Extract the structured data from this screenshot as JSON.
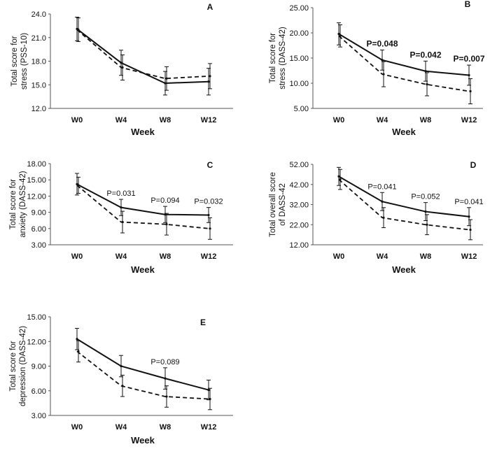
{
  "chart_data": [
    {
      "type": "line",
      "panel": "A",
      "ylabel": [
        "Total score for",
        "stress (PSS-10)"
      ],
      "xlabel": "Week",
      "categories": [
        "W0",
        "W4",
        "W8",
        "W12"
      ],
      "ylim": [
        12.0,
        24.0
      ],
      "yticks": [
        "12.0",
        "15.0",
        "18.0",
        "21.0",
        "24.0"
      ],
      "series": [
        {
          "style": "solid",
          "values": [
            22.1,
            17.8,
            15.2,
            15.4
          ],
          "error": [
            1.5,
            1.6,
            1.5,
            1.7
          ]
        },
        {
          "style": "dashed",
          "values": [
            22.0,
            17.2,
            15.8,
            16.1
          ],
          "error": [
            1.5,
            1.6,
            1.5,
            1.6
          ]
        }
      ],
      "annotations": []
    },
    {
      "type": "line",
      "panel": "B",
      "ylabel": [
        "Total score for",
        "stress (DASS-42)"
      ],
      "xlabel": "Week",
      "categories": [
        "W0",
        "W4",
        "W8",
        "W12"
      ],
      "ylim": [
        5.0,
        25.0
      ],
      "yticks": [
        "5.00",
        "10.00",
        "15.00",
        "20.00",
        "25.00"
      ],
      "series": [
        {
          "style": "solid",
          "values": [
            19.8,
            14.6,
            12.4,
            11.6
          ],
          "error": [
            2.2,
            2.0,
            2.0,
            2.0
          ]
        },
        {
          "style": "dashed",
          "values": [
            19.4,
            11.8,
            9.8,
            8.4
          ],
          "error": [
            2.2,
            2.5,
            2.3,
            2.5
          ]
        }
      ],
      "annotations": [
        {
          "category": "W4",
          "text": "P=0.048"
        },
        {
          "category": "W8",
          "text": "P=0.042"
        },
        {
          "category": "W12",
          "text": "P=0.007"
        }
      ]
    },
    {
      "type": "line",
      "panel": "C",
      "ylabel": [
        "Total score for",
        "anxiety (DASS-42)"
      ],
      "xlabel": "Week",
      "categories": [
        "W0",
        "W4",
        "W8",
        "W12"
      ],
      "ylim": [
        3.0,
        18.0
      ],
      "yticks": [
        "3.00",
        "6.00",
        "9.00",
        "12.00",
        "15.00",
        "18.00"
      ],
      "series": [
        {
          "style": "solid",
          "values": [
            14.2,
            9.9,
            8.6,
            8.5
          ],
          "error": [
            2.0,
            1.5,
            1.5,
            1.4
          ]
        },
        {
          "style": "dashed",
          "values": [
            14.0,
            7.2,
            6.8,
            6.0
          ],
          "error": [
            1.5,
            2.0,
            2.0,
            2.0
          ]
        }
      ],
      "annotations": [
        {
          "category": "W4",
          "text": "P=0.031"
        },
        {
          "category": "W8",
          "text": "P=0.094"
        },
        {
          "category": "W12",
          "text": "P=0.032"
        }
      ]
    },
    {
      "type": "line",
      "panel": "D",
      "ylabel": [
        "Total overall score",
        "of DASS-42"
      ],
      "xlabel": "Week",
      "categories": [
        "W0",
        "W4",
        "W8",
        "W12"
      ],
      "ylim": [
        12.0,
        52.0
      ],
      "yticks": [
        "12.00",
        "22.00",
        "32.00",
        "42.00",
        "52.00"
      ],
      "series": [
        {
          "style": "solid",
          "values": [
            46.0,
            33.5,
            28.5,
            26.0
          ],
          "error": [
            4.5,
            4.5,
            4.5,
            4.5
          ]
        },
        {
          "style": "dashed",
          "values": [
            44.5,
            25.5,
            22.0,
            19.5
          ],
          "error": [
            5.0,
            5.0,
            5.0,
            5.0
          ]
        }
      ],
      "annotations": [
        {
          "category": "W4",
          "text": "P=0.041"
        },
        {
          "category": "W8",
          "text": "P=0.052"
        },
        {
          "category": "W12",
          "text": "P=0.041"
        }
      ]
    },
    {
      "type": "line",
      "panel": "E",
      "ylabel": [
        "Total score for",
        "depression (DASS-42)"
      ],
      "xlabel": "Week",
      "categories": [
        "W0",
        "W4",
        "W8",
        "W12"
      ],
      "ylim": [
        3.0,
        15.0
      ],
      "yticks": [
        "3.00",
        "6.00",
        "9.00",
        "12.00",
        "15.00"
      ],
      "series": [
        {
          "style": "solid",
          "values": [
            12.3,
            9.0,
            7.5,
            6.1
          ],
          "error": [
            1.3,
            1.3,
            1.3,
            1.2
          ]
        },
        {
          "style": "dashed",
          "values": [
            10.8,
            6.6,
            5.3,
            5.0
          ],
          "error": [
            1.3,
            1.3,
            1.3,
            1.3
          ]
        }
      ],
      "annotations": [
        {
          "category": "W8",
          "text": "P=0.089"
        }
      ]
    }
  ]
}
